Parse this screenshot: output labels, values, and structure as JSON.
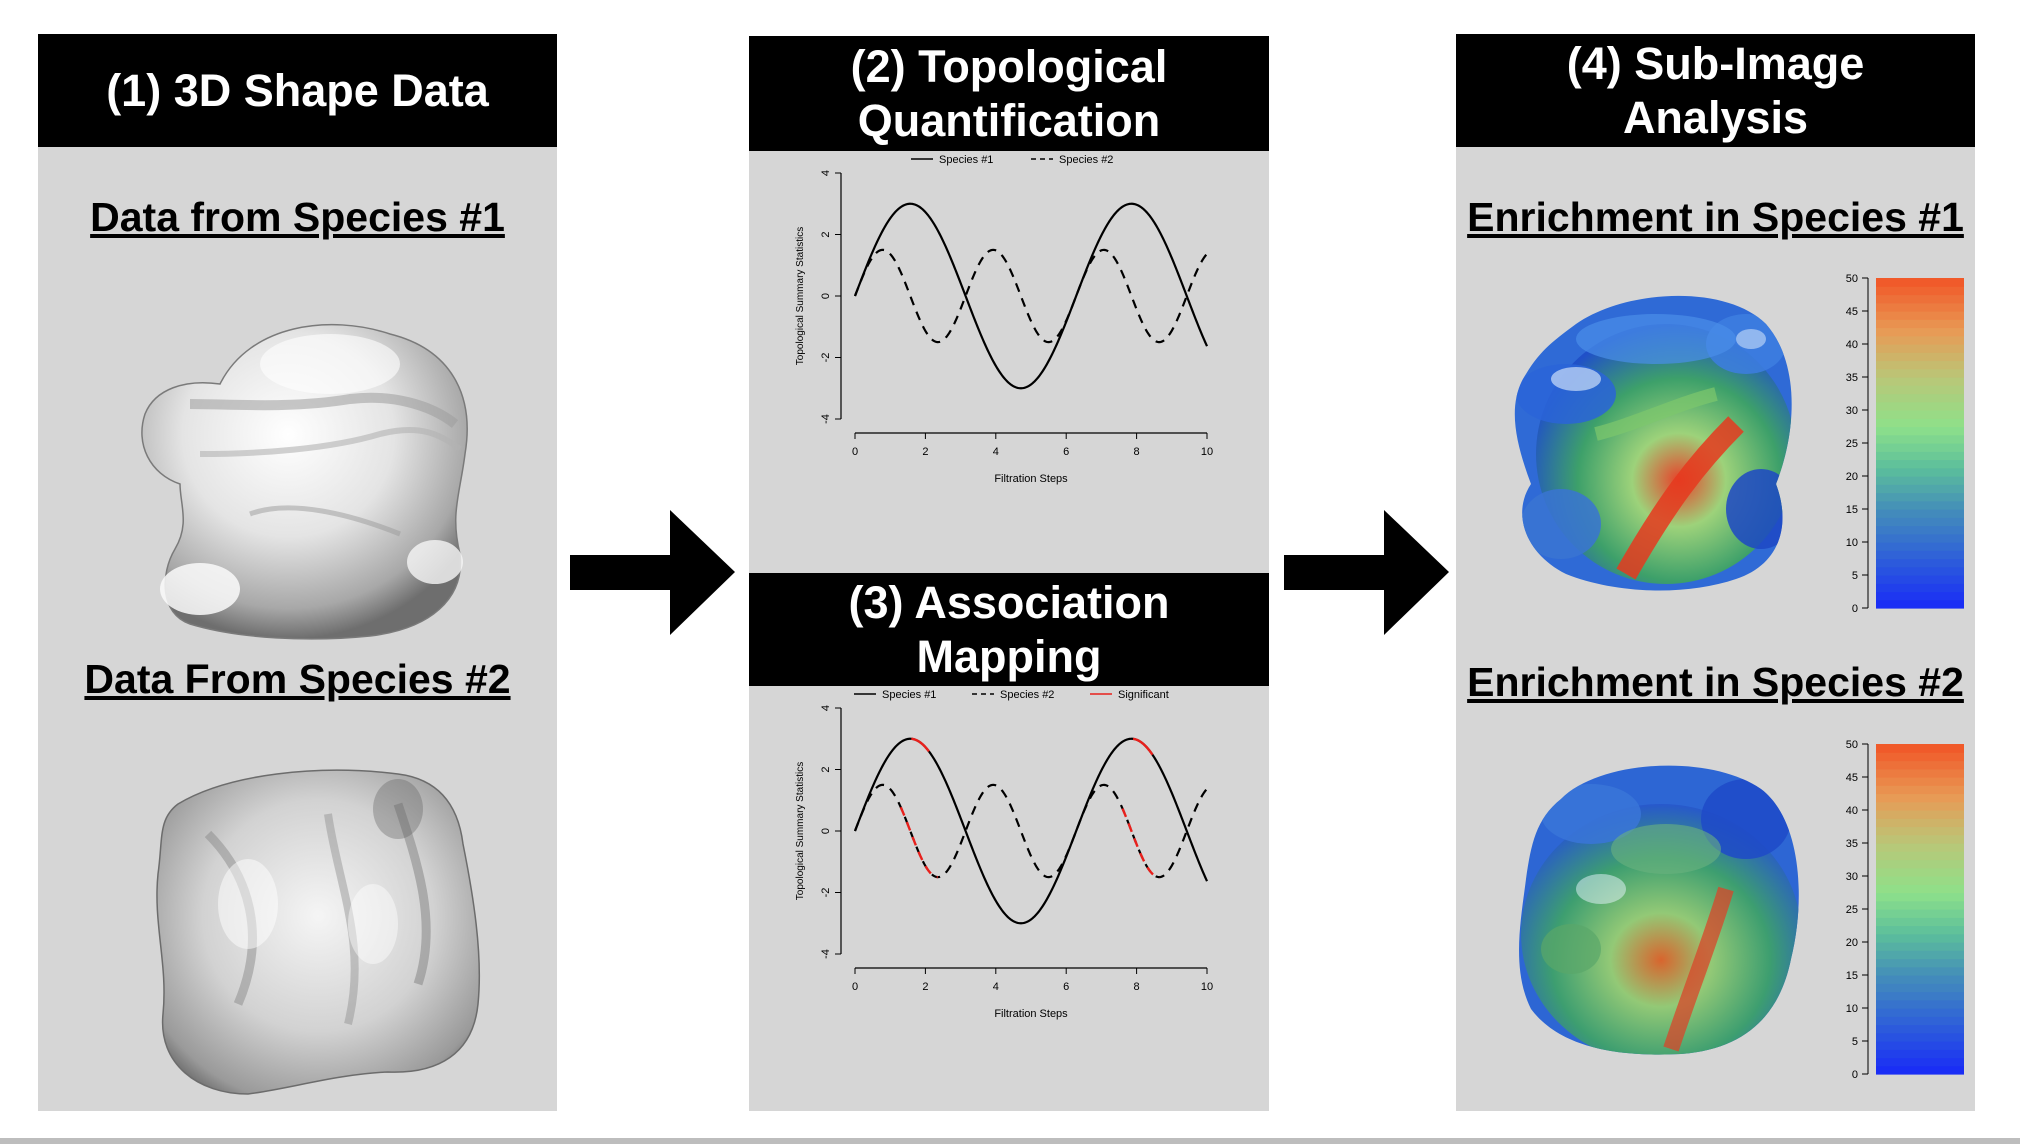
{
  "panel1": {
    "header": "(1) 3D Shape Data",
    "subtitle_top": "Data from Species #1",
    "subtitle_bottom": "Data From Species #2"
  },
  "panel2": {
    "header_line1": "(2) Topological",
    "header_line2": "Quantification"
  },
  "panel3": {
    "header_line1": "(3) Association",
    "header_line2": "Mapping"
  },
  "panel4": {
    "header_line1": "(4) Sub-Image",
    "header_line2": "Analysis",
    "subtitle_top": "Enrichment in Species #1",
    "subtitle_bottom": "Enrichment in Species #2",
    "colorbar_ticks": [
      "0",
      "5",
      "10",
      "15",
      "20",
      "25",
      "30",
      "35",
      "40",
      "45",
      "50"
    ]
  },
  "chart_data": [
    {
      "type": "line",
      "xlabel": "Filtration Steps",
      "ylabel": "Topological Summary Statistics",
      "xlim": [
        0,
        10
      ],
      "ylim": [
        -4,
        4
      ],
      "xticks": [
        "0",
        "2",
        "4",
        "6",
        "8",
        "10"
      ],
      "yticks": [
        "-4",
        "-2",
        "0",
        "2",
        "4"
      ],
      "legend": [
        "Species #1",
        "Species #2"
      ],
      "legend_position": "top",
      "series": [
        {
          "name": "Species #1",
          "style": "solid",
          "function": "3*sin(x)"
        },
        {
          "name": "Species #2",
          "style": "dashed",
          "function": "1.5*sin(2x)"
        }
      ]
    },
    {
      "type": "line",
      "xlabel": "Filtration Steps",
      "ylabel": "Topological Summary Statistics",
      "xlim": [
        0,
        10
      ],
      "ylim": [
        -4,
        4
      ],
      "xticks": [
        "0",
        "2",
        "4",
        "6",
        "8",
        "10"
      ],
      "yticks": [
        "-4",
        "-2",
        "0",
        "2",
        "4"
      ],
      "legend": [
        "Species #1",
        "Species #2",
        "Significant"
      ],
      "legend_position": "top",
      "series": [
        {
          "name": "Species #1",
          "style": "solid",
          "function": "3*sin(x)"
        },
        {
          "name": "Species #2",
          "style": "dashed",
          "function": "1.5*sin(2x)"
        }
      ],
      "significant_intervals": [
        {
          "series": "Species #1",
          "x": [
            1.6,
            2.1
          ]
        },
        {
          "series": "Species #1",
          "x": [
            7.9,
            8.45
          ]
        },
        {
          "series": "Species #2",
          "x": [
            1.3,
            2.35
          ]
        },
        {
          "series": "Species #2",
          "x": [
            7.6,
            8.65
          ]
        }
      ],
      "significant_color": "#e8201c"
    }
  ]
}
